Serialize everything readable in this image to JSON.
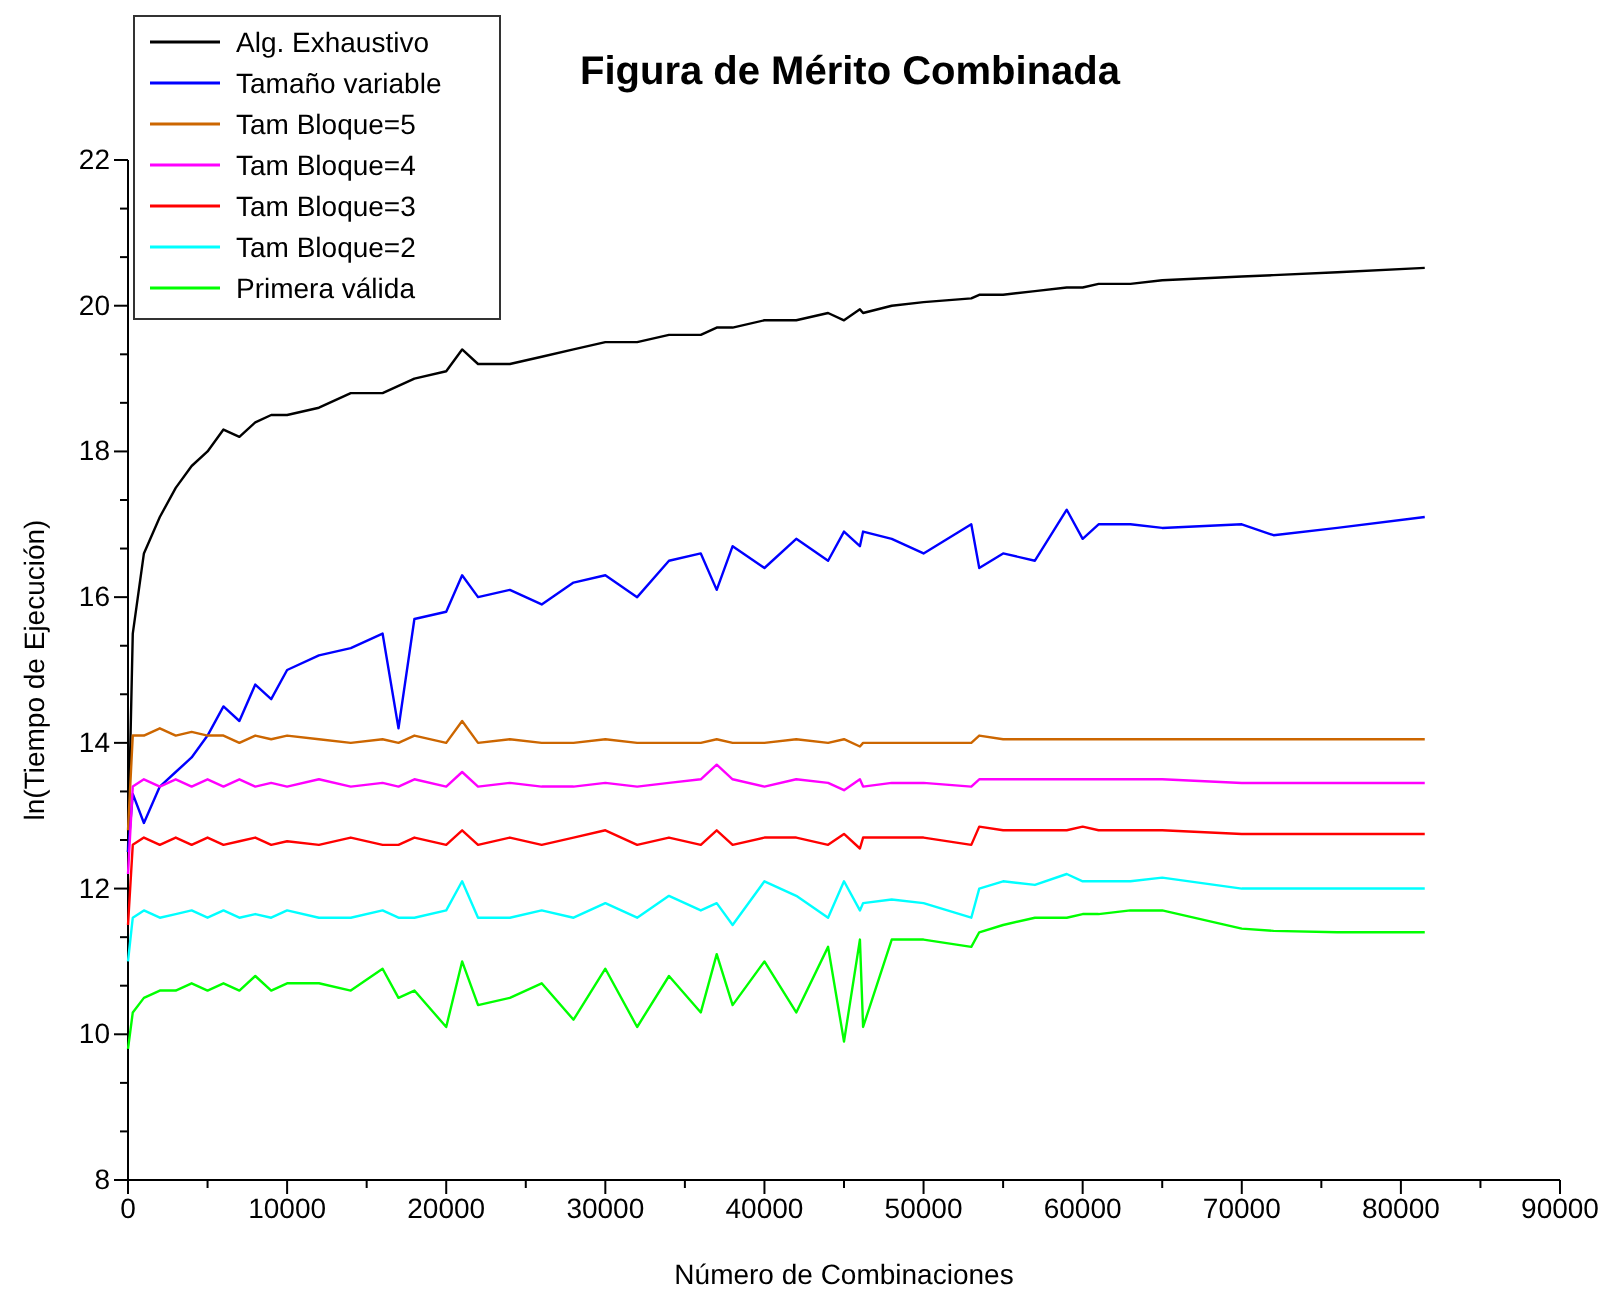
{
  "chart_data": {
    "type": "line",
    "title": "Figura de Mérito Combinada",
    "xlabel": "Número de Combinaciones",
    "ylabel": "ln(Tiempo de Ejecución)",
    "xlim": [
      0,
      90000
    ],
    "ylim": [
      8,
      22
    ],
    "xticks": [
      0,
      {
        "value": 5000,
        "label": null
      },
      10000,
      {
        "value": 15000,
        "label": null
      },
      20000,
      {
        "value": 25000,
        "label": null
      },
      30000,
      {
        "value": 35000,
        "label": null
      },
      40000,
      {
        "value": 45000,
        "label": null
      },
      50000,
      {
        "value": 55000,
        "label": null
      },
      60000,
      {
        "value": 65000,
        "label": null
      },
      70000,
      {
        "value": 75000,
        "label": null
      },
      80000,
      {
        "value": 85000,
        "label": null
      },
      90000
    ],
    "yticks": [
      8,
      {
        "value": 8.667,
        "label": null
      },
      {
        "value": 9.333,
        "label": null
      },
      10,
      {
        "value": 10.667,
        "label": null
      },
      {
        "value": 11.333,
        "label": null
      },
      12,
      {
        "value": 12.667,
        "label": null
      },
      {
        "value": 13.333,
        "label": null
      },
      14,
      {
        "value": 14.667,
        "label": null
      },
      {
        "value": 15.333,
        "label": null
      },
      16,
      {
        "value": 16.667,
        "label": null
      },
      {
        "value": 17.333,
        "label": null
      },
      18,
      {
        "value": 18.667,
        "label": null
      },
      {
        "value": 19.333,
        "label": null
      },
      20,
      {
        "value": 20.667,
        "label": null
      },
      {
        "value": 21.333,
        "label": null
      },
      22
    ],
    "grid": false,
    "legend": "top left",
    "marker": "none",
    "line_style": "solid",
    "x": [
      0,
      300,
      1000,
      2000,
      3000,
      4000,
      5000,
      6000,
      7000,
      8000,
      9000,
      10000,
      12000,
      14000,
      16000,
      17000,
      18000,
      20000,
      21000,
      22000,
      24000,
      26000,
      28000,
      30000,
      32000,
      34000,
      36000,
      37000,
      38000,
      40000,
      42000,
      44000,
      45000,
      46000,
      46200,
      48000,
      50000,
      53000,
      53500,
      55000,
      57000,
      59000,
      60000,
      61000,
      63000,
      65000,
      70000,
      72000,
      76000,
      81500
    ],
    "series": [
      {
        "name": "Alg. Exhaustivo",
        "color": "#000000",
        "values": [
          12.5,
          15.5,
          16.6,
          17.1,
          17.5,
          17.8,
          18.0,
          18.3,
          18.2,
          18.4,
          18.5,
          18.5,
          18.6,
          18.8,
          18.8,
          18.9,
          19.0,
          19.1,
          19.4,
          19.2,
          19.2,
          19.3,
          19.4,
          19.5,
          19.5,
          19.6,
          19.6,
          19.7,
          19.7,
          19.8,
          19.8,
          19.9,
          19.8,
          19.95,
          19.9,
          20.0,
          20.05,
          20.1,
          20.15,
          20.15,
          20.2,
          20.25,
          20.25,
          20.3,
          20.3,
          20.35,
          20.4,
          20.42,
          20.46,
          20.52
        ]
      },
      {
        "name": "Tamaño variable",
        "color": "#0000ff",
        "values": [
          12.5,
          13.3,
          12.9,
          13.4,
          13.6,
          13.8,
          14.1,
          14.5,
          14.3,
          14.8,
          14.6,
          15.0,
          15.2,
          15.3,
          15.5,
          14.2,
          15.7,
          15.8,
          16.3,
          16.0,
          16.1,
          15.9,
          16.2,
          16.3,
          16.0,
          16.5,
          16.6,
          16.1,
          16.7,
          16.4,
          16.8,
          16.5,
          16.9,
          16.7,
          16.9,
          16.8,
          16.6,
          17.0,
          16.4,
          16.6,
          16.5,
          17.2,
          16.8,
          17.0,
          17.0,
          16.95,
          17.0,
          16.85,
          16.95,
          17.1
        ]
      },
      {
        "name": "Tam Bloque=5",
        "color": "#cc6600",
        "values": [
          12.8,
          14.1,
          14.1,
          14.2,
          14.1,
          14.15,
          14.1,
          14.1,
          14.0,
          14.1,
          14.05,
          14.1,
          14.05,
          14.0,
          14.05,
          14.0,
          14.1,
          14.0,
          14.3,
          14.0,
          14.05,
          14.0,
          14.0,
          14.05,
          14.0,
          14.0,
          14.0,
          14.05,
          14.0,
          14.0,
          14.05,
          14.0,
          14.05,
          13.95,
          14.0,
          14.0,
          14.0,
          14.0,
          14.1,
          14.05,
          14.05,
          14.05,
          14.05,
          14.05,
          14.05,
          14.05,
          14.05,
          14.05,
          14.05,
          14.05
        ]
      },
      {
        "name": "Tam Bloque=4",
        "color": "#ff00ff",
        "values": [
          12.2,
          13.4,
          13.5,
          13.4,
          13.5,
          13.4,
          13.5,
          13.4,
          13.5,
          13.4,
          13.45,
          13.4,
          13.5,
          13.4,
          13.45,
          13.4,
          13.5,
          13.4,
          13.6,
          13.4,
          13.45,
          13.4,
          13.4,
          13.45,
          13.4,
          13.45,
          13.5,
          13.7,
          13.5,
          13.4,
          13.5,
          13.45,
          13.35,
          13.5,
          13.4,
          13.45,
          13.45,
          13.4,
          13.5,
          13.5,
          13.5,
          13.5,
          13.5,
          13.5,
          13.5,
          13.5,
          13.45,
          13.45,
          13.45,
          13.45
        ]
      },
      {
        "name": "Tam Bloque=3",
        "color": "#ff0000",
        "values": [
          11.5,
          12.6,
          12.7,
          12.6,
          12.7,
          12.6,
          12.7,
          12.6,
          12.65,
          12.7,
          12.6,
          12.65,
          12.6,
          12.7,
          12.6,
          12.6,
          12.7,
          12.6,
          12.8,
          12.6,
          12.7,
          12.6,
          12.7,
          12.8,
          12.6,
          12.7,
          12.6,
          12.8,
          12.6,
          12.7,
          12.7,
          12.6,
          12.75,
          12.55,
          12.7,
          12.7,
          12.7,
          12.6,
          12.85,
          12.8,
          12.8,
          12.8,
          12.85,
          12.8,
          12.8,
          12.8,
          12.75,
          12.75,
          12.75,
          12.75
        ]
      },
      {
        "name": "Tam Bloque=2",
        "color": "#00ffff",
        "values": [
          11.0,
          11.6,
          11.7,
          11.6,
          11.65,
          11.7,
          11.6,
          11.7,
          11.6,
          11.65,
          11.6,
          11.7,
          11.6,
          11.6,
          11.7,
          11.6,
          11.6,
          11.7,
          12.1,
          11.6,
          11.6,
          11.7,
          11.6,
          11.8,
          11.6,
          11.9,
          11.7,
          11.8,
          11.5,
          12.1,
          11.9,
          11.6,
          12.1,
          11.7,
          11.8,
          11.85,
          11.8,
          11.6,
          12.0,
          12.1,
          12.05,
          12.2,
          12.1,
          12.1,
          12.1,
          12.15,
          12.0,
          12.0,
          12.0,
          12.0
        ]
      },
      {
        "name": "Primera válida",
        "color": "#00ff00",
        "values": [
          9.8,
          10.3,
          10.5,
          10.6,
          10.6,
          10.7,
          10.6,
          10.7,
          10.6,
          10.8,
          10.6,
          10.7,
          10.7,
          10.6,
          10.9,
          10.5,
          10.6,
          10.1,
          11.0,
          10.4,
          10.5,
          10.7,
          10.2,
          10.9,
          10.1,
          10.8,
          10.3,
          11.1,
          10.4,
          11.0,
          10.3,
          11.2,
          9.9,
          11.3,
          10.1,
          11.3,
          11.3,
          11.2,
          11.4,
          11.5,
          11.6,
          11.6,
          11.65,
          11.65,
          11.7,
          11.7,
          11.45,
          11.42,
          11.4,
          11.4
        ]
      }
    ]
  }
}
